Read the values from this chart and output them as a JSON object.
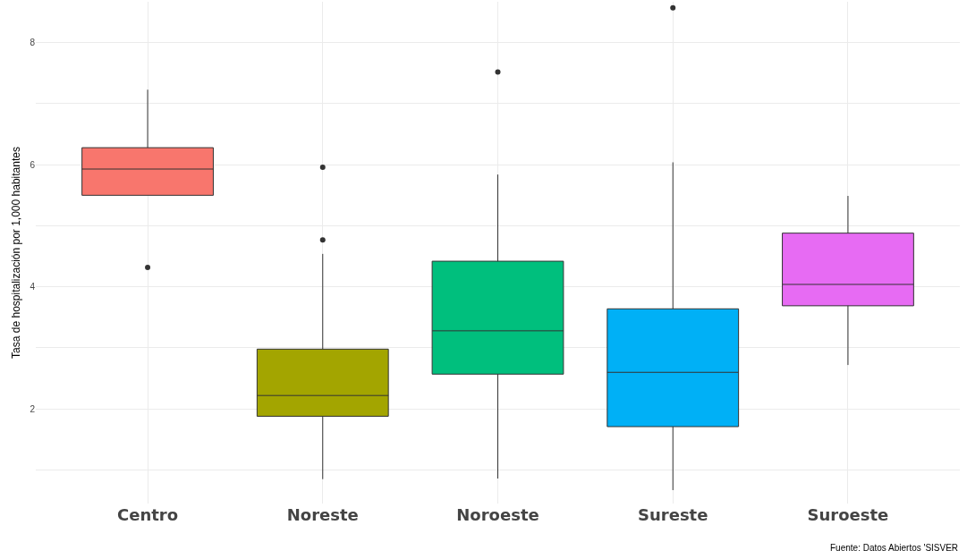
{
  "chart_data": {
    "type": "box",
    "ylabel": "Tasa de hospitalización por 1,000 habitantes",
    "categories": [
      "Centro",
      "Noreste",
      "Noroeste",
      "Sureste",
      "Suroeste"
    ],
    "colors": [
      "#f8766d",
      "#a3a500",
      "#00bf7d",
      "#00b0f6",
      "#e76bf3"
    ],
    "boxes": [
      {
        "low": 5.5,
        "q1": 5.5,
        "median": 5.93,
        "q3": 6.28,
        "high": 7.23,
        "outliers": [
          4.32
        ]
      },
      {
        "low": 0.85,
        "q1": 1.88,
        "median": 2.22,
        "q3": 2.98,
        "high": 4.54,
        "outliers": [
          4.77,
          5.96
        ]
      },
      {
        "low": 0.86,
        "q1": 2.57,
        "median": 3.28,
        "q3": 4.42,
        "high": 5.84,
        "outliers": [
          7.52
        ]
      },
      {
        "low": 0.67,
        "q1": 1.71,
        "median": 2.6,
        "q3": 3.64,
        "high": 6.04,
        "outliers": [
          8.57
        ]
      },
      {
        "low": 2.72,
        "q1": 3.69,
        "median": 4.04,
        "q3": 4.88,
        "high": 5.49
      }
    ],
    "ylim": [
      0.45,
      8.67
    ],
    "yticks": [
      {
        "value": 1,
        "label": null
      },
      2,
      {
        "value": 3,
        "label": null
      },
      4,
      {
        "value": 5,
        "label": null
      },
      6,
      {
        "value": 7,
        "label": null
      },
      8
    ],
    "grid": true,
    "legend": false,
    "annotations": [
      "Fuente: Datos Abiertos 'SISVER"
    ]
  }
}
